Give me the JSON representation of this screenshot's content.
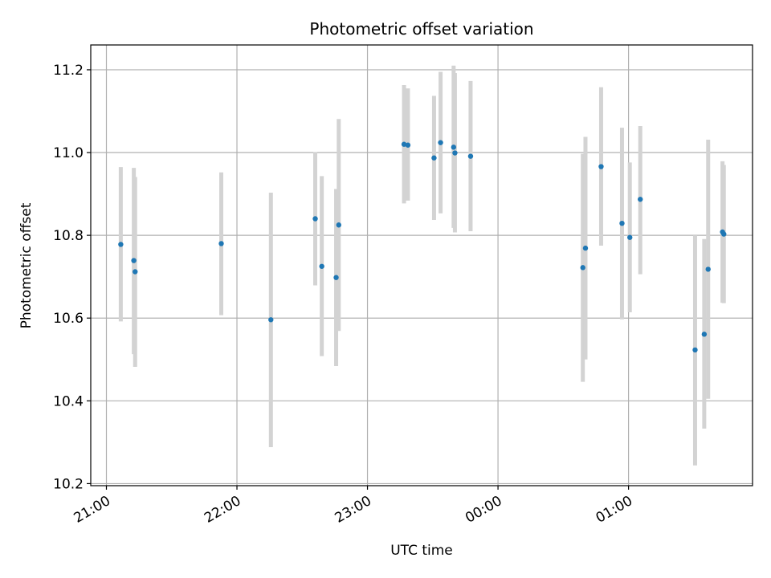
{
  "chart_data": {
    "type": "scatter",
    "title": "Photometric offset variation",
    "xlabel": "UTC time",
    "ylabel": "Photometric offset",
    "x_unit": "hours UTC",
    "xlim": [
      20.88,
      25.95
    ],
    "ylim": [
      10.195,
      11.26
    ],
    "x_ticks": [
      {
        "value": 21,
        "label": "21:00"
      },
      {
        "value": 22,
        "label": "22:00"
      },
      {
        "value": 23,
        "label": "23:00"
      },
      {
        "value": 24,
        "label": "00:00"
      },
      {
        "value": 25,
        "label": "01:00"
      }
    ],
    "y_ticks": [
      {
        "value": 10.2,
        "label": "10.2"
      },
      {
        "value": 10.4,
        "label": "10.4"
      },
      {
        "value": 10.6,
        "label": "10.6"
      },
      {
        "value": 10.8,
        "label": "10.8"
      },
      {
        "value": 11.0,
        "label": "11.0"
      },
      {
        "value": 11.2,
        "label": "11.2"
      }
    ],
    "grid": true,
    "point_color": "#1f77b4",
    "errorbar_color": "#d3d3d3",
    "points": [
      {
        "x": 21.11,
        "y": 10.778,
        "ylo": 10.592,
        "yhi": 10.965
      },
      {
        "x": 21.21,
        "y": 10.739,
        "ylo": 10.513,
        "yhi": 10.963
      },
      {
        "x": 21.22,
        "y": 10.712,
        "ylo": 10.482,
        "yhi": 10.941
      },
      {
        "x": 21.88,
        "y": 10.78,
        "ylo": 10.607,
        "yhi": 10.952
      },
      {
        "x": 22.26,
        "y": 10.596,
        "ylo": 10.288,
        "yhi": 10.903
      },
      {
        "x": 22.6,
        "y": 10.84,
        "ylo": 10.679,
        "yhi": 11.001
      },
      {
        "x": 22.65,
        "y": 10.725,
        "ylo": 10.508,
        "yhi": 10.943
      },
      {
        "x": 22.76,
        "y": 10.698,
        "ylo": 10.484,
        "yhi": 10.912
      },
      {
        "x": 22.78,
        "y": 10.825,
        "ylo": 10.569,
        "yhi": 11.081
      },
      {
        "x": 23.28,
        "y": 11.02,
        "ylo": 10.877,
        "yhi": 11.163
      },
      {
        "x": 23.31,
        "y": 11.018,
        "ylo": 10.884,
        "yhi": 11.155
      },
      {
        "x": 23.51,
        "y": 10.987,
        "ylo": 10.837,
        "yhi": 11.137
      },
      {
        "x": 23.56,
        "y": 11.024,
        "ylo": 10.853,
        "yhi": 11.195
      },
      {
        "x": 23.66,
        "y": 11.013,
        "ylo": 10.818,
        "yhi": 11.21
      },
      {
        "x": 23.67,
        "y": 10.999,
        "ylo": 10.807,
        "yhi": 11.192
      },
      {
        "x": 23.79,
        "y": 10.991,
        "ylo": 10.81,
        "yhi": 11.173
      },
      {
        "x": 24.65,
        "y": 10.722,
        "ylo": 10.446,
        "yhi": 10.997
      },
      {
        "x": 24.67,
        "y": 10.769,
        "ylo": 10.5,
        "yhi": 11.038
      },
      {
        "x": 24.79,
        "y": 10.966,
        "ylo": 10.775,
        "yhi": 11.158
      },
      {
        "x": 24.95,
        "y": 10.829,
        "ylo": 10.597,
        "yhi": 11.06
      },
      {
        "x": 25.01,
        "y": 10.795,
        "ylo": 10.614,
        "yhi": 10.976
      },
      {
        "x": 25.09,
        "y": 10.887,
        "ylo": 10.706,
        "yhi": 11.064
      },
      {
        "x": 25.51,
        "y": 10.523,
        "ylo": 10.244,
        "yhi": 10.8
      },
      {
        "x": 25.58,
        "y": 10.561,
        "ylo": 10.333,
        "yhi": 10.791
      },
      {
        "x": 25.61,
        "y": 10.718,
        "ylo": 10.405,
        "yhi": 11.031
      },
      {
        "x": 25.72,
        "y": 10.808,
        "ylo": 10.637,
        "yhi": 10.979
      },
      {
        "x": 25.73,
        "y": 10.803,
        "ylo": 10.636,
        "yhi": 10.97
      }
    ]
  }
}
